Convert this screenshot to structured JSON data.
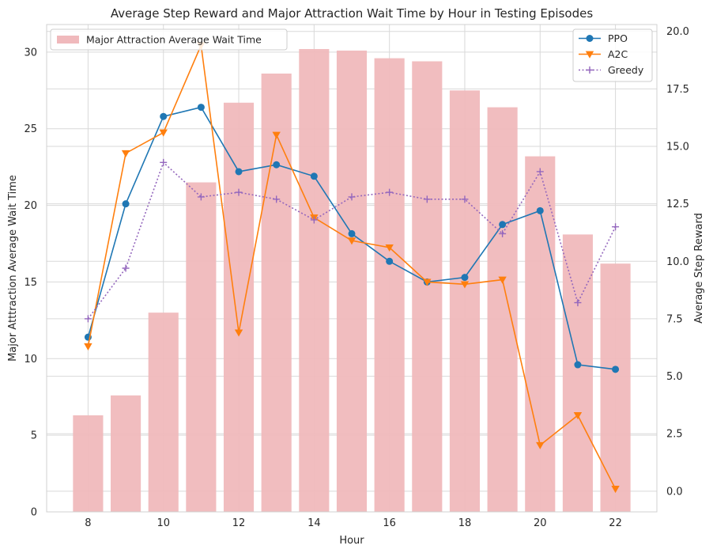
{
  "chart_data": {
    "type": "bar+line",
    "title": "Average Step Reward and Major Attraction Wait Time by Hour in Testing Episodes",
    "xlabel": "Hour",
    "ylabel_left": "Major Atttraction Average Wait Time",
    "ylabel_right": "Average Step Reward",
    "x": [
      8,
      9,
      10,
      11,
      12,
      13,
      14,
      15,
      16,
      17,
      18,
      19,
      20,
      21,
      22
    ],
    "x_ticks": [
      "8",
      "10",
      "12",
      "14",
      "16",
      "18",
      "20",
      "22"
    ],
    "ylim_left": [
      0,
      31.8
    ],
    "yticks_left": [
      "0",
      "5",
      "10",
      "15",
      "20",
      "25",
      "30"
    ],
    "ylim_right": [
      -0.9,
      20.3
    ],
    "yticks_right": [
      "0.0",
      "2.5",
      "5.0",
      "7.5",
      "10.0",
      "12.5",
      "15.0",
      "17.5",
      "20.0"
    ],
    "grid": true,
    "bars": {
      "name": "Major Attraction Average Wait Time",
      "color": "#f0b9bc",
      "axis": "left",
      "values": [
        6.3,
        7.6,
        13.0,
        21.5,
        26.7,
        28.6,
        30.2,
        30.1,
        29.6,
        29.4,
        27.5,
        26.4,
        23.2,
        18.1,
        16.2
      ]
    },
    "series": [
      {
        "name": "PPO",
        "color": "#1f77b4",
        "marker": "circle",
        "style": "solid",
        "axis": "right",
        "values": [
          6.7,
          12.5,
          16.3,
          16.7,
          13.9,
          14.2,
          13.7,
          11.2,
          10.0,
          9.1,
          9.3,
          11.6,
          12.2,
          5.5,
          5.3
        ]
      },
      {
        "name": "A2C",
        "color": "#ff7f0e",
        "marker": "triangle-down",
        "style": "solid",
        "axis": "right",
        "values": [
          6.3,
          14.7,
          15.6,
          19.4,
          6.9,
          15.5,
          11.9,
          10.9,
          10.6,
          9.1,
          9.0,
          9.2,
          2.0,
          3.3,
          0.1
        ]
      },
      {
        "name": "Greedy",
        "color": "#9467bd",
        "marker": "plus",
        "style": "dotted",
        "axis": "right",
        "values": [
          7.5,
          9.7,
          14.3,
          12.8,
          13.0,
          12.7,
          11.8,
          12.8,
          13.0,
          12.7,
          12.7,
          11.2,
          13.9,
          8.2,
          11.5
        ]
      }
    ],
    "legend_bars_position": "top-left",
    "legend_lines_position": "top-right"
  }
}
